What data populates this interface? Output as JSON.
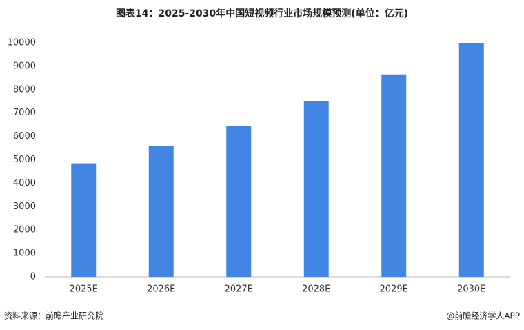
{
  "chart_data": {
    "type": "bar",
    "title": "图表14：2025-2030年中国短视频行业市场规模预测(单位：亿元)",
    "categories": [
      "2025E",
      "2026E",
      "2027E",
      "2028E",
      "2029E",
      "2030E"
    ],
    "values": [
      4850,
      5600,
      6450,
      7500,
      8650,
      10000
    ],
    "color": "#4285e3",
    "ylim": [
      0,
      10000
    ],
    "yticks": [
      0,
      1000,
      2000,
      3000,
      4000,
      5000,
      6000,
      7000,
      8000,
      9000,
      10000
    ],
    "grid": false,
    "source": "资料来源：前瞻产业研究院",
    "credit": "@前瞻经济学人APP"
  }
}
